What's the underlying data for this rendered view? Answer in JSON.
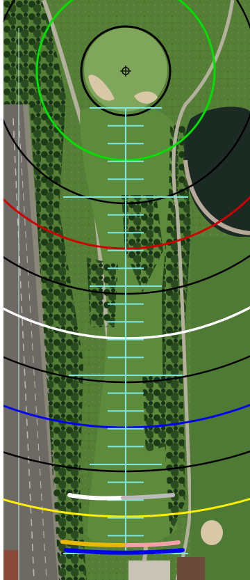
{
  "hole_view": {
    "type": "golf-hole-aerial-yardage-map",
    "background": "aerial-photo",
    "colors": {
      "fairway": "#5e8a3c",
      "rough": "#3f6a2c",
      "trees": "#23401b",
      "road": "#6d6a66",
      "path": "#b4b09e",
      "water": "#1c2a24",
      "bunker": "#d9c8a8",
      "green": "#7fa65a",
      "ruler": "#7fe8e0"
    },
    "rings": [
      {
        "color": "#00e000"
      },
      {
        "color": "#000000"
      },
      {
        "color": "#000000"
      },
      {
        "color": "#cc0000"
      },
      {
        "color": "#000000"
      },
      {
        "color": "#ffffff"
      },
      {
        "color": "#000000"
      },
      {
        "color": "#0000ee"
      },
      {
        "color": "#000000"
      },
      {
        "color": "#ffee00"
      }
    ],
    "tee_markers": [
      {
        "name": "white",
        "color": "#ffffff"
      },
      {
        "name": "silver",
        "color": "#bbbbbb"
      },
      {
        "name": "gold",
        "color": "#e8b800"
      },
      {
        "name": "pink",
        "color": "#f5a0a8"
      },
      {
        "name": "blue",
        "color": "#0000ee"
      }
    ],
    "pin_icon": "crosshair-target-icon"
  }
}
